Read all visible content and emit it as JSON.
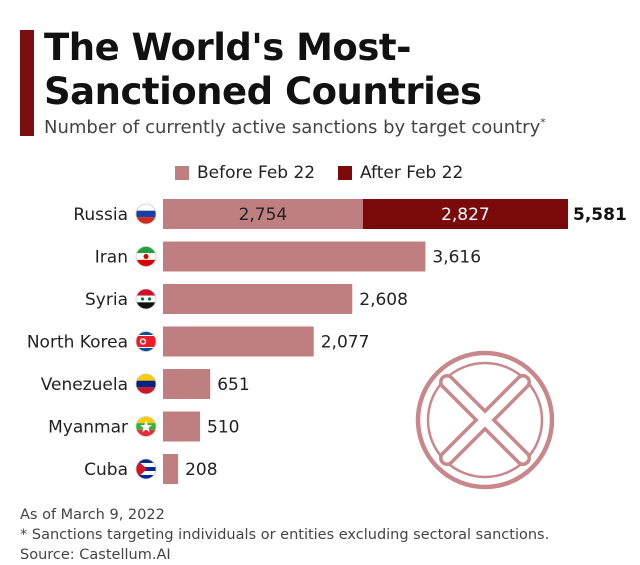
{
  "header": {
    "title": "The World's Most-Sanctioned Countries",
    "subtitle": "Number of currently active sanctions by target country",
    "subtitle_mark": "*"
  },
  "colors": {
    "before": "#bf7f80",
    "after": "#7b0a0a",
    "accent": "#7b0e0e",
    "seal": "#c8888b"
  },
  "chart_data": {
    "type": "bar",
    "orientation": "horizontal",
    "stacked": true,
    "categories": [
      "Russia",
      "Iran",
      "Syria",
      "North Korea",
      "Venezuela",
      "Myanmar",
      "Cuba"
    ],
    "series": [
      {
        "name": "Before Feb 22",
        "values": [
          2754,
          3616,
          2608,
          2077,
          651,
          510,
          208
        ]
      },
      {
        "name": "After Feb 22",
        "values": [
          2827,
          0,
          0,
          0,
          0,
          0,
          0
        ]
      }
    ],
    "value_labels": {
      "before": [
        "2,754",
        "3,616",
        "2,608",
        "2,077",
        "651",
        "510",
        "208"
      ],
      "after": [
        "2,827",
        "",
        "",
        "",
        "",
        "",
        ""
      ],
      "total": [
        "5,581",
        "",
        "",
        "",
        "",
        "",
        ""
      ]
    },
    "flag_icons": [
      "russia-flag-icon",
      "iran-flag-icon",
      "syria-flag-icon",
      "north-korea-flag-icon",
      "venezuela-flag-icon",
      "myanmar-flag-icon",
      "cuba-flag-icon"
    ],
    "xlim": [
      0,
      5581
    ],
    "legend": "top-center",
    "grid": false
  },
  "decoration": {
    "icon": "sanction-x-seal-icon"
  },
  "footer": {
    "date_note": "As of March 9, 2022",
    "footnote": "* Sanctions targeting individuals or entities excluding sectoral sanctions.",
    "source": "Source: Castellum.AI"
  }
}
